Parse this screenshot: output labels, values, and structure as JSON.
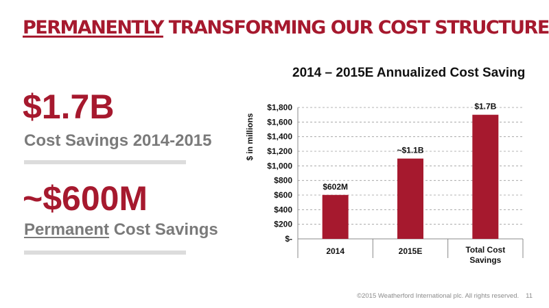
{
  "slide": {
    "title_part1": "Permanently",
    "title_part2": " Transforming our Cost Structure"
  },
  "left": {
    "stat1_value": "$1.7B",
    "stat1_label": "Cost Savings 2014-2015",
    "stat2_value": "~$600M",
    "stat2_label_underlined": "Permanent",
    "stat2_label_rest": " Cost Savings"
  },
  "footer": {
    "copyright": "©2015 Weatherford International plc.  All rights reserved.",
    "page": "11"
  },
  "colors": {
    "accent": "#a6192e",
    "bar": "#a6192e",
    "subtext": "#7a7a7a",
    "rule": "#dcdcdc"
  },
  "chart_data": {
    "type": "bar",
    "title": "2014 – 2015E Annualized Cost Saving",
    "ylabel": "$ in millions",
    "xlabel": "",
    "categories": [
      "2014",
      "2015E",
      "Total Cost Savings"
    ],
    "values": [
      602,
      1100,
      1700
    ],
    "data_labels": [
      "$602M",
      "~$1.1B",
      "$1.7B"
    ],
    "ylim": [
      0,
      1800
    ],
    "yticks": [
      0,
      200,
      400,
      600,
      800,
      1000,
      1200,
      1400,
      1600,
      1800
    ],
    "ytick_labels": [
      "$-",
      "$200",
      "$400",
      "$600",
      "$800",
      "$1,000",
      "$1,200",
      "$1,400",
      "$1,600",
      "$1,800"
    ],
    "grid": true,
    "legend": "none"
  }
}
